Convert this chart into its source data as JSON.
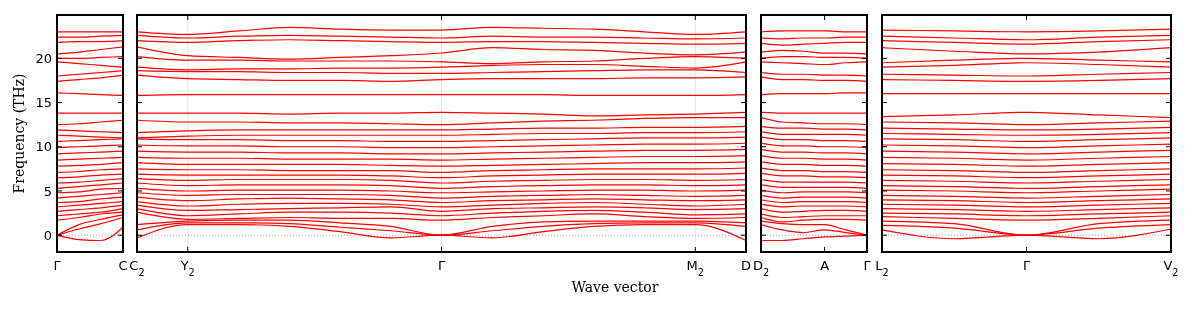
{
  "chart_data": [
    {
      "type": "line",
      "ylabel": "Frequency (THz)",
      "color": "#ff0000",
      "categories": [
        "Γ",
        null,
        null,
        "C"
      ],
      "ylim": [
        -1.9,
        24.9
      ],
      "yticks": [
        0,
        5,
        10,
        15,
        20
      ],
      "ref_lines": [
        {
          "axis": "y",
          "value": 0,
          "color": "#7f7fff",
          "line_style": "dotted"
        }
      ],
      "series": [
        {
          "values": [
            0,
            -0.5,
            -0.6,
            0.9
          ]
        },
        {
          "values": [
            0,
            0.7,
            1.3,
            2.0
          ]
        },
        {
          "values": [
            0,
            1.2,
            1.8,
            2.3
          ]
        },
        {
          "values": [
            1.7,
            2.0,
            2.4,
            2.6
          ]
        },
        {
          "values": [
            2.2,
            2.4,
            2.6,
            3.0
          ]
        },
        {
          "values": [
            2.7,
            2.9,
            3.1,
            3.4
          ]
        },
        {
          "values": [
            3.2,
            3.4,
            3.6,
            3.8
          ]
        },
        {
          "values": [
            3.7,
            3.8,
            4.1,
            4.3
          ]
        },
        {
          "values": [
            4.2,
            4.4,
            4.6,
            4.8
          ]
        },
        {
          "values": [
            4.8,
            4.9,
            5.2,
            5.3
          ]
        },
        {
          "values": [
            5.3,
            5.5,
            5.7,
            5.9
          ]
        },
        {
          "values": [
            5.9,
            6.0,
            6.2,
            6.4
          ]
        },
        {
          "values": [
            6.5,
            6.6,
            6.8,
            6.9
          ]
        },
        {
          "values": [
            7.1,
            7.2,
            7.4,
            7.5
          ]
        },
        {
          "values": [
            7.8,
            7.9,
            8.0,
            8.2
          ]
        },
        {
          "values": [
            8.5,
            8.6,
            8.7,
            8.8
          ]
        },
        {
          "values": [
            9.2,
            9.3,
            9.4,
            9.5
          ]
        },
        {
          "values": [
            9.9,
            10.0,
            10.1,
            10.2
          ]
        },
        {
          "values": [
            10.6,
            10.7,
            10.8,
            10.9
          ]
        },
        {
          "values": [
            11.3,
            11.2,
            11.1,
            11.0
          ]
        },
        {
          "values": [
            11.9,
            11.8,
            11.7,
            11.6
          ]
        },
        {
          "values": [
            12.5,
            12.6,
            12.8,
            13.0
          ]
        },
        {
          "values": [
            13.8,
            13.8,
            13.8,
            13.8
          ]
        },
        {
          "values": [
            16.1,
            16.0,
            15.9,
            15.8
          ]
        },
        {
          "values": [
            17.4,
            17.6,
            17.8,
            18.1
          ]
        },
        {
          "values": [
            18.0,
            18.2,
            18.4,
            18.6
          ]
        },
        {
          "values": [
            19.6,
            19.4,
            19.2,
            19.0
          ]
        },
        {
          "values": [
            20.0,
            20.0,
            20.1,
            20.2
          ]
        },
        {
          "values": [
            20.5,
            20.7,
            21.0,
            21.3
          ]
        },
        {
          "values": [
            21.8,
            21.9,
            21.9,
            22.0
          ]
        },
        {
          "values": [
            22.4,
            22.4,
            22.5,
            22.6
          ]
        },
        {
          "values": [
            23.0,
            23.0,
            23.0,
            23.0
          ]
        }
      ]
    },
    {
      "type": "line",
      "xlabel": "Wave vector",
      "color": "#ff0000",
      "tick_labels": "x",
      "categories": [
        "C$_{2}$",
        "Y$_{2}$",
        null,
        null,
        null,
        null,
        "Γ",
        null,
        null,
        null,
        null,
        "M$_{2}$",
        "D"
      ],
      "ylim": [
        -1.9,
        24.9
      ],
      "yticks": [
        0,
        5,
        10,
        15,
        20
      ],
      "grid": "x",
      "ref_lines": [
        {
          "axis": "y",
          "value": 0,
          "color": "#7f7fff",
          "line_style": "dotted"
        }
      ],
      "series": [
        {
          "values": [
            -0.3,
            1.2,
            1.2,
            1.0,
            0.4,
            -0.3,
            0,
            -0.3,
            0.4,
            1.0,
            1.2,
            1.2,
            -0.6
          ]
        },
        {
          "values": [
            0.6,
            1.4,
            1.4,
            1.3,
            0.9,
            0.5,
            0,
            0.5,
            1.0,
            1.3,
            1.4,
            1.4,
            1.0
          ]
        },
        {
          "values": [
            1.2,
            1.6,
            1.7,
            1.7,
            1.4,
            1.0,
            0,
            1.0,
            1.5,
            1.6,
            1.6,
            1.6,
            1.4
          ]
        },
        {
          "values": [
            2.6,
            1.8,
            1.9,
            2.0,
            1.9,
            1.9,
            1.7,
            2.0,
            2.2,
            2.4,
            2.1,
            1.9,
            2.0
          ]
        },
        {
          "values": [
            3.0,
            2.2,
            2.4,
            2.6,
            2.6,
            2.5,
            2.2,
            2.5,
            2.7,
            2.8,
            2.6,
            2.3,
            2.4
          ]
        },
        {
          "values": [
            3.4,
            2.8,
            2.9,
            3.0,
            3.1,
            3.2,
            2.7,
            3.0,
            3.1,
            3.2,
            3.1,
            2.9,
            3.0
          ]
        },
        {
          "values": [
            3.8,
            3.3,
            3.5,
            3.6,
            3.6,
            3.5,
            3.2,
            3.4,
            3.6,
            3.7,
            3.5,
            3.3,
            3.5
          ]
        },
        {
          "values": [
            4.3,
            3.9,
            4.1,
            4.2,
            4.1,
            4.0,
            3.7,
            3.9,
            4.0,
            4.1,
            4.0,
            3.9,
            4.0
          ]
        },
        {
          "values": [
            4.8,
            4.5,
            4.6,
            4.6,
            4.6,
            4.5,
            4.2,
            4.4,
            4.5,
            4.6,
            4.5,
            4.4,
            4.5
          ]
        },
        {
          "values": [
            5.3,
            5.0,
            5.1,
            5.1,
            5.1,
            5.0,
            4.8,
            4.9,
            5.0,
            5.1,
            5.1,
            5.0,
            5.1
          ]
        },
        {
          "values": [
            5.9,
            5.6,
            5.7,
            5.7,
            5.7,
            5.6,
            5.3,
            5.5,
            5.6,
            5.7,
            5.7,
            5.6,
            5.7
          ]
        },
        {
          "values": [
            6.4,
            6.2,
            6.3,
            6.3,
            6.3,
            6.2,
            5.9,
            6.1,
            6.2,
            6.3,
            6.3,
            6.2,
            6.3
          ]
        },
        {
          "values": [
            6.9,
            6.8,
            6.8,
            6.8,
            6.8,
            6.7,
            6.5,
            6.7,
            6.8,
            6.9,
            6.9,
            6.9,
            7.0
          ]
        },
        {
          "values": [
            7.5,
            7.4,
            7.4,
            7.3,
            7.3,
            7.3,
            7.1,
            7.3,
            7.4,
            7.5,
            7.5,
            7.5,
            7.6
          ]
        },
        {
          "values": [
            8.2,
            8.0,
            8.0,
            8.0,
            8.0,
            7.9,
            7.8,
            7.9,
            8.0,
            8.1,
            8.2,
            8.2,
            8.3
          ]
        },
        {
          "values": [
            8.8,
            8.7,
            8.7,
            8.6,
            8.6,
            8.6,
            8.5,
            8.6,
            8.7,
            8.8,
            8.9,
            8.9,
            9.0
          ]
        },
        {
          "values": [
            9.5,
            9.4,
            9.4,
            9.3,
            9.3,
            9.2,
            9.2,
            9.3,
            9.4,
            9.5,
            9.6,
            9.6,
            9.7
          ]
        },
        {
          "values": [
            10.2,
            10.1,
            10.1,
            10.0,
            10.0,
            9.9,
            9.9,
            10.0,
            10.1,
            10.2,
            10.3,
            10.3,
            10.4
          ]
        },
        {
          "values": [
            10.9,
            10.8,
            10.8,
            10.7,
            10.7,
            10.6,
            10.6,
            10.7,
            10.8,
            10.9,
            11.0,
            11.0,
            11.1
          ]
        },
        {
          "values": [
            11.0,
            11.2,
            11.3,
            11.3,
            11.3,
            11.3,
            11.3,
            11.4,
            11.5,
            11.5,
            11.6,
            11.6,
            11.7
          ]
        },
        {
          "values": [
            11.6,
            11.8,
            11.9,
            11.9,
            11.9,
            11.9,
            11.9,
            12.0,
            12.1,
            12.1,
            12.2,
            12.2,
            12.3
          ]
        },
        {
          "values": [
            13.0,
            12.8,
            12.8,
            12.7,
            12.7,
            12.6,
            12.5,
            12.7,
            12.9,
            13.0,
            13.2,
            13.3,
            13.3
          ]
        },
        {
          "values": [
            13.8,
            13.8,
            13.8,
            13.7,
            13.8,
            13.8,
            13.9,
            13.8,
            13.7,
            13.5,
            13.6,
            13.7,
            13.9
          ]
        },
        {
          "values": [
            15.8,
            15.9,
            15.9,
            15.9,
            15.9,
            15.9,
            15.9,
            15.9,
            15.9,
            15.8,
            15.8,
            15.8,
            15.9
          ]
        },
        {
          "values": [
            18.1,
            17.7,
            17.6,
            17.5,
            17.5,
            17.4,
            17.6,
            17.7,
            17.7,
            17.7,
            17.8,
            17.8,
            17.9
          ]
        },
        {
          "values": [
            18.6,
            18.5,
            18.5,
            18.4,
            18.4,
            18.3,
            18.3,
            18.4,
            18.5,
            18.6,
            18.7,
            18.7,
            18.4
          ]
        },
        {
          "values": [
            19.0,
            18.7,
            18.8,
            18.8,
            18.9,
            18.9,
            19.0,
            19.2,
            19.3,
            19.3,
            19.1,
            18.9,
            19.6
          ]
        },
        {
          "values": [
            20.2,
            19.8,
            19.8,
            19.7,
            19.7,
            19.7,
            19.6,
            19.4,
            19.6,
            19.7,
            20.0,
            20.2,
            20.0
          ]
        },
        {
          "values": [
            21.3,
            20.3,
            20.1,
            19.9,
            20.1,
            20.3,
            20.6,
            21.2,
            21.0,
            20.9,
            20.6,
            20.4,
            20.7
          ]
        },
        {
          "values": [
            22.0,
            21.8,
            22.0,
            22.1,
            22.0,
            21.9,
            21.8,
            21.9,
            21.9,
            21.8,
            21.7,
            21.6,
            21.7
          ]
        },
        {
          "values": [
            22.6,
            22.3,
            22.5,
            22.6,
            22.5,
            22.4,
            22.3,
            22.5,
            22.4,
            22.4,
            22.3,
            22.2,
            22.3
          ]
        },
        {
          "values": [
            23.0,
            22.7,
            23.1,
            23.5,
            23.3,
            23.2,
            23.2,
            23.5,
            23.4,
            23.3,
            23.0,
            22.7,
            23.0
          ]
        }
      ]
    },
    {
      "type": "line",
      "color": "#ff0000",
      "tick_labels": "x",
      "categories": [
        "D$_{2}$",
        null,
        null,
        "A",
        null,
        "Γ"
      ],
      "ylim": [
        -1.9,
        24.9
      ],
      "yticks": [
        0,
        5,
        10,
        15,
        20
      ],
      "ref_lines": [
        {
          "axis": "y",
          "value": 0,
          "color": "#7f7fff",
          "line_style": "dotted"
        }
      ],
      "series": [
        {
          "values": [
            -0.6,
            -0.6,
            -0.4,
            -0.2,
            -0.1,
            0
          ]
        },
        {
          "values": [
            1.2,
            0.6,
            0.3,
            0.6,
            0.3,
            0
          ]
        },
        {
          "values": [
            1.6,
            1.3,
            1.2,
            1.2,
            0.6,
            0
          ]
        },
        {
          "values": [
            2.0,
            1.5,
            1.7,
            1.8,
            1.8,
            1.7
          ]
        },
        {
          "values": [
            2.4,
            2.0,
            2.1,
            2.2,
            2.2,
            2.2
          ]
        },
        {
          "values": [
            3.0,
            2.6,
            2.7,
            2.8,
            2.8,
            2.7
          ]
        },
        {
          "values": [
            3.5,
            3.2,
            3.3,
            3.3,
            3.3,
            3.2
          ]
        },
        {
          "values": [
            4.0,
            3.7,
            3.8,
            3.8,
            3.8,
            3.7
          ]
        },
        {
          "values": [
            4.5,
            4.2,
            4.3,
            4.3,
            4.3,
            4.2
          ]
        },
        {
          "values": [
            5.1,
            4.8,
            4.9,
            4.9,
            4.9,
            4.8
          ]
        },
        {
          "values": [
            5.7,
            5.4,
            5.4,
            5.4,
            5.4,
            5.3
          ]
        },
        {
          "values": [
            6.3,
            6.0,
            6.0,
            6.0,
            6.0,
            5.9
          ]
        },
        {
          "values": [
            7.0,
            6.7,
            6.7,
            6.6,
            6.6,
            6.5
          ]
        },
        {
          "values": [
            7.6,
            7.3,
            7.3,
            7.2,
            7.2,
            7.1
          ]
        },
        {
          "values": [
            8.3,
            8.0,
            8.0,
            7.9,
            7.9,
            7.8
          ]
        },
        {
          "values": [
            9.0,
            8.7,
            8.7,
            8.6,
            8.6,
            8.5
          ]
        },
        {
          "values": [
            9.7,
            9.4,
            9.4,
            9.3,
            9.3,
            9.2
          ]
        },
        {
          "values": [
            10.4,
            10.1,
            10.1,
            10.0,
            10.0,
            9.9
          ]
        },
        {
          "values": [
            11.1,
            10.8,
            10.8,
            10.7,
            10.7,
            10.6
          ]
        },
        {
          "values": [
            11.7,
            11.4,
            11.4,
            11.4,
            11.4,
            11.3
          ]
        },
        {
          "values": [
            12.3,
            12.1,
            12.1,
            12.0,
            12.0,
            11.9
          ]
        },
        {
          "values": [
            13.3,
            12.8,
            12.7,
            12.6,
            12.6,
            12.5
          ]
        },
        {
          "values": [
            13.9,
            13.8,
            13.8,
            13.8,
            13.8,
            13.8
          ]
        },
        {
          "values": [
            15.9,
            16.0,
            16.0,
            16.0,
            16.1,
            16.1
          ]
        },
        {
          "values": [
            17.9,
            17.6,
            17.6,
            17.5,
            17.5,
            17.4
          ]
        },
        {
          "values": [
            18.4,
            18.2,
            18.2,
            18.1,
            18.1,
            18.0
          ]
        },
        {
          "values": [
            19.6,
            19.5,
            19.4,
            19.3,
            19.5,
            19.6
          ]
        },
        {
          "values": [
            20.0,
            20.2,
            20.2,
            20.1,
            20.1,
            20.0
          ]
        },
        {
          "values": [
            20.7,
            20.9,
            20.8,
            20.6,
            20.6,
            20.5
          ]
        },
        {
          "values": [
            21.7,
            21.5,
            21.6,
            21.7,
            21.8,
            21.8
          ]
        },
        {
          "values": [
            22.3,
            22.2,
            22.3,
            22.3,
            22.4,
            22.4
          ]
        },
        {
          "values": [
            23.0,
            23.1,
            23.1,
            23.1,
            23.0,
            23.0
          ]
        }
      ]
    },
    {
      "type": "line",
      "color": "#ff0000",
      "tick_labels": "x",
      "categories": [
        "L$_{2}$",
        null,
        "Γ",
        null,
        "V$_{2}$"
      ],
      "ylim": [
        -1.9,
        24.9
      ],
      "yticks": [
        0,
        5,
        10,
        15,
        20
      ],
      "ref_lines": [
        {
          "axis": "y",
          "value": 0,
          "color": "#7f7fff",
          "line_style": "dotted"
        }
      ],
      "series": [
        {
          "values": [
            0.6,
            -0.4,
            0,
            -0.4,
            0.7
          ]
        },
        {
          "values": [
            1.1,
            0.8,
            0,
            0.8,
            1.2
          ]
        },
        {
          "values": [
            1.6,
            1.3,
            0,
            1.3,
            1.7
          ]
        },
        {
          "values": [
            2.1,
            1.9,
            1.7,
            1.9,
            2.2
          ]
        },
        {
          "values": [
            2.5,
            2.4,
            2.2,
            2.4,
            2.6
          ]
        },
        {
          "values": [
            3.0,
            2.9,
            2.7,
            2.9,
            3.1
          ]
        },
        {
          "values": [
            3.5,
            3.4,
            3.2,
            3.4,
            3.6
          ]
        },
        {
          "values": [
            4.0,
            3.9,
            3.7,
            3.9,
            4.1
          ]
        },
        {
          "values": [
            4.5,
            4.4,
            4.2,
            4.4,
            4.6
          ]
        },
        {
          "values": [
            5.1,
            5.0,
            4.8,
            5.0,
            5.2
          ]
        },
        {
          "values": [
            5.6,
            5.5,
            5.3,
            5.5,
            5.7
          ]
        },
        {
          "values": [
            6.2,
            6.1,
            5.9,
            6.1,
            6.3
          ]
        },
        {
          "values": [
            6.8,
            6.7,
            6.5,
            6.7,
            6.9
          ]
        },
        {
          "values": [
            7.4,
            7.3,
            7.1,
            7.3,
            7.5
          ]
        },
        {
          "values": [
            8.1,
            8.0,
            7.8,
            8.0,
            8.2
          ]
        },
        {
          "values": [
            8.8,
            8.7,
            8.5,
            8.7,
            8.9
          ]
        },
        {
          "values": [
            9.5,
            9.4,
            9.2,
            9.4,
            9.6
          ]
        },
        {
          "values": [
            10.2,
            10.1,
            9.9,
            10.1,
            10.3
          ]
        },
        {
          "values": [
            10.9,
            10.8,
            10.6,
            10.8,
            11.0
          ]
        },
        {
          "values": [
            11.5,
            11.4,
            11.3,
            11.4,
            11.6
          ]
        },
        {
          "values": [
            12.1,
            12.0,
            11.9,
            12.0,
            12.2
          ]
        },
        {
          "values": [
            12.8,
            12.7,
            12.5,
            12.7,
            12.9
          ]
        },
        {
          "values": [
            13.4,
            13.6,
            13.9,
            13.6,
            13.3
          ]
        },
        {
          "values": [
            16.0,
            16.0,
            16.0,
            16.0,
            16.0
          ]
        },
        {
          "values": [
            17.6,
            17.5,
            17.4,
            17.5,
            17.7
          ]
        },
        {
          "values": [
            18.2,
            18.1,
            18.0,
            18.2,
            18.4
          ]
        },
        {
          "values": [
            19.0,
            19.2,
            19.5,
            19.3,
            19.0
          ]
        },
        {
          "values": [
            19.5,
            19.8,
            20.0,
            19.8,
            19.6
          ]
        },
        {
          "values": [
            21.2,
            20.8,
            20.5,
            20.7,
            21.2
          ]
        },
        {
          "values": [
            22.0,
            21.8,
            21.6,
            21.9,
            22.1
          ]
        },
        {
          "values": [
            22.5,
            22.3,
            22.1,
            22.4,
            22.6
          ]
        },
        {
          "values": [
            23.2,
            23.1,
            23.0,
            23.1,
            23.3
          ]
        }
      ]
    }
  ]
}
